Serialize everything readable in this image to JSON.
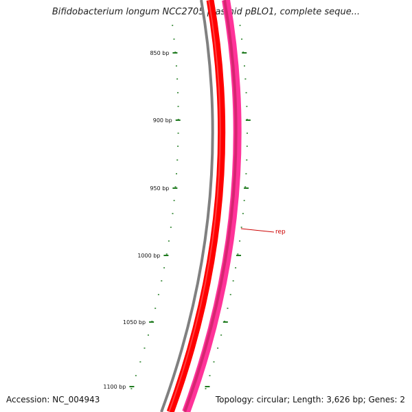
{
  "title": "Bifidobacterium longum NCC2705 plasmid pBLO1, complete seque...",
  "footer": {
    "accession": "Accession: NC_004943",
    "summary": "Topology: circular; Length: 3,626 bp; Genes: 2"
  },
  "ticks": {
    "color": "#1e7a1e",
    "labels": [
      {
        "label": "850 bp",
        "bp": 850
      },
      {
        "label": "900 bp",
        "bp": 900
      },
      {
        "label": "950 bp",
        "bp": 950
      },
      {
        "label": "1000 bp",
        "bp": 1000
      },
      {
        "label": "1050 bp",
        "bp": 1050
      },
      {
        "label": "1100 bp",
        "bp": 1100
      }
    ]
  },
  "tracks": {
    "backbone_color": "#808080",
    "forward_color": "#ff0000",
    "reverse_color": "#ff3399"
  },
  "features": [
    {
      "name": "rep",
      "color": "#cc0000"
    }
  ]
}
